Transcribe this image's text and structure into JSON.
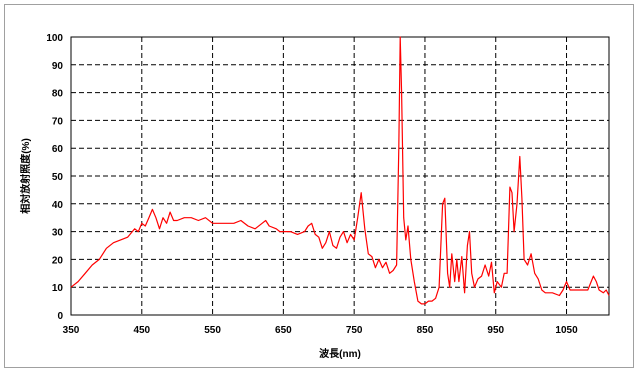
{
  "chart_data": {
    "type": "line",
    "title": "",
    "xlabel": "波長(nm)",
    "ylabel": "相対放射照度(%)",
    "xlim": [
      350,
      1110
    ],
    "ylim": [
      0,
      100
    ],
    "xticks": [
      350,
      450,
      550,
      650,
      750,
      850,
      950,
      1050
    ],
    "yticks": [
      0,
      10,
      20,
      30,
      40,
      50,
      60,
      70,
      80,
      90,
      100
    ],
    "grid": true,
    "legend": "none",
    "series": [
      {
        "color": "#ff0000",
        "points": [
          [
            350,
            10
          ],
          [
            360,
            12
          ],
          [
            370,
            15
          ],
          [
            380,
            18
          ],
          [
            390,
            20
          ],
          [
            400,
            24
          ],
          [
            410,
            26
          ],
          [
            420,
            27
          ],
          [
            430,
            28
          ],
          [
            440,
            31
          ],
          [
            445,
            30
          ],
          [
            450,
            33
          ],
          [
            455,
            32
          ],
          [
            460,
            35
          ],
          [
            465,
            38
          ],
          [
            470,
            35
          ],
          [
            475,
            31
          ],
          [
            480,
            35
          ],
          [
            485,
            33
          ],
          [
            490,
            37
          ],
          [
            495,
            34
          ],
          [
            500,
            34
          ],
          [
            510,
            35
          ],
          [
            520,
            35
          ],
          [
            530,
            34
          ],
          [
            540,
            35
          ],
          [
            550,
            33
          ],
          [
            560,
            33
          ],
          [
            570,
            33
          ],
          [
            580,
            33
          ],
          [
            590,
            34
          ],
          [
            600,
            32
          ],
          [
            610,
            31
          ],
          [
            620,
            33
          ],
          [
            625,
            34
          ],
          [
            630,
            32
          ],
          [
            640,
            31
          ],
          [
            645,
            30
          ],
          [
            650,
            30
          ],
          [
            660,
            30
          ],
          [
            670,
            29
          ],
          [
            680,
            30
          ],
          [
            685,
            32
          ],
          [
            690,
            33
          ],
          [
            695,
            29
          ],
          [
            700,
            28
          ],
          [
            705,
            24
          ],
          [
            710,
            26
          ],
          [
            715,
            30
          ],
          [
            720,
            25
          ],
          [
            725,
            24
          ],
          [
            730,
            28
          ],
          [
            735,
            30
          ],
          [
            740,
            26
          ],
          [
            745,
            29
          ],
          [
            750,
            27
          ],
          [
            755,
            35
          ],
          [
            760,
            44
          ],
          [
            765,
            31
          ],
          [
            770,
            22
          ],
          [
            775,
            21
          ],
          [
            780,
            17
          ],
          [
            785,
            20
          ],
          [
            790,
            17
          ],
          [
            795,
            19
          ],
          [
            800,
            15
          ],
          [
            805,
            16
          ],
          [
            810,
            18
          ],
          [
            813,
            60
          ],
          [
            815,
            100
          ],
          [
            817,
            80
          ],
          [
            820,
            35
          ],
          [
            823,
            27
          ],
          [
            826,
            32
          ],
          [
            830,
            20
          ],
          [
            835,
            12
          ],
          [
            840,
            5
          ],
          [
            845,
            4
          ],
          [
            850,
            4
          ],
          [
            855,
            5
          ],
          [
            860,
            5
          ],
          [
            865,
            6
          ],
          [
            870,
            10
          ],
          [
            875,
            40
          ],
          [
            878,
            42
          ],
          [
            882,
            15
          ],
          [
            885,
            10
          ],
          [
            888,
            22
          ],
          [
            892,
            12
          ],
          [
            895,
            20
          ],
          [
            898,
            12
          ],
          [
            902,
            21
          ],
          [
            906,
            8
          ],
          [
            910,
            25
          ],
          [
            913,
            30
          ],
          [
            916,
            15
          ],
          [
            920,
            10
          ],
          [
            925,
            13
          ],
          [
            930,
            14
          ],
          [
            935,
            18
          ],
          [
            940,
            14
          ],
          [
            944,
            19
          ],
          [
            948,
            8
          ],
          [
            952,
            12
          ],
          [
            958,
            10
          ],
          [
            962,
            15
          ],
          [
            966,
            15
          ],
          [
            970,
            46
          ],
          [
            973,
            44
          ],
          [
            976,
            30
          ],
          [
            980,
            40
          ],
          [
            984,
            57
          ],
          [
            987,
            42
          ],
          [
            990,
            20
          ],
          [
            995,
            18
          ],
          [
            1000,
            22
          ],
          [
            1005,
            15
          ],
          [
            1010,
            13
          ],
          [
            1015,
            9
          ],
          [
            1020,
            8
          ],
          [
            1030,
            8
          ],
          [
            1040,
            7
          ],
          [
            1045,
            9
          ],
          [
            1050,
            12
          ],
          [
            1055,
            9
          ],
          [
            1060,
            9
          ],
          [
            1070,
            9
          ],
          [
            1080,
            9
          ],
          [
            1088,
            14
          ],
          [
            1092,
            12
          ],
          [
            1096,
            9
          ],
          [
            1102,
            8
          ],
          [
            1106,
            9
          ],
          [
            1110,
            7
          ]
        ]
      }
    ]
  }
}
